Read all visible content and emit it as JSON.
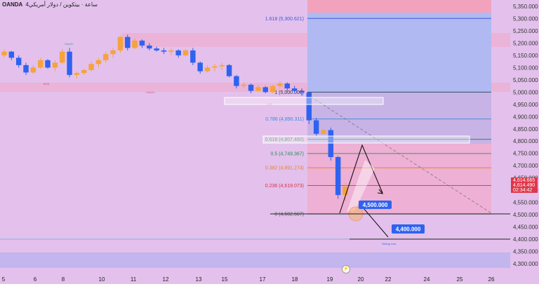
{
  "header": {
    "symbol": "OANDA",
    "description": "4ساعة · بيتكوین / دولار أمريكي"
  },
  "colors": {
    "background": "#e3c1ec",
    "bull": "#f5a33c",
    "bear": "#2f62f0",
    "fib_zone_blue": "#aeb8f4",
    "fib_zone_pink": "#f0aed0",
    "level_line": "#222222",
    "price_tag_blue": "#2f62f0"
  },
  "chart_data": {
    "type": "candlestick",
    "y_axis": {
      "ylim": [
        4290,
        5390
      ],
      "ticks": [
        "5,350.000",
        "5,300.000",
        "5,250.000",
        "5,200.000",
        "5,150.000",
        "5,100.000",
        "5,050.000",
        "5,000.000",
        "4,950.000",
        "4,900.000",
        "4,850.000",
        "4,800.000",
        "4,750.000",
        "4,700.000",
        "4,650.000",
        "4,600.000",
        "4,550.000",
        "4,500.000",
        "4,450.000",
        "4,400.000",
        "4,350.000",
        "4,300.000"
      ]
    },
    "x_axis": {
      "ticks": [
        "5",
        "6",
        "8",
        "10",
        "11",
        "12",
        "13",
        "15",
        "17",
        "18",
        "19",
        "20",
        "22",
        "24",
        "25",
        "26"
      ]
    },
    "price_labels": [
      {
        "text": "4,614.665",
        "value": 4614.665,
        "color": "#e0364a"
      },
      {
        "text": "4,614.490",
        "value": 4614.49,
        "color": "#e0364a"
      },
      {
        "text": "02:34:42",
        "value": 4592,
        "color": "#e0364a"
      }
    ],
    "fib_levels": [
      {
        "label": "1.618 (5,300.621)",
        "value": 5300.621,
        "color": "#3a5ad8"
      },
      {
        "label": "1 (5,000.000)",
        "value": 5000.0,
        "color": "#3a3a3a"
      },
      {
        "label": "0.786 (4,890.311)",
        "value": 4890.311,
        "color": "#3a8ad8"
      },
      {
        "label": "0.618 (4,807.460)",
        "value": 4807.46,
        "color": "#2b8a55"
      },
      {
        "label": "0.5 (4,749.367)",
        "value": 4749.367,
        "color": "#2b8a55"
      },
      {
        "label": "0.382 (4,691.274)",
        "value": 4691.274,
        "color": "#e8802a"
      },
      {
        "label": "0.236 (4,619.073)",
        "value": 4619.073,
        "color": "#d93048"
      },
      {
        "label": "0 (4,502.587)",
        "value": 4502.587,
        "color": "#555555"
      }
    ],
    "target_labels": [
      {
        "text": "4,500.000",
        "value": 4500
      },
      {
        "text": "4,400.000",
        "value": 4400
      }
    ],
    "annotations": [
      "ChoCh",
      "BOS",
      "ChoCh",
      "BOS",
      "Strong Low"
    ],
    "candles": [
      [
        5150,
        5175,
        5140,
        5165
      ],
      [
        5165,
        5168,
        5130,
        5140
      ],
      [
        5140,
        5150,
        5100,
        5110
      ],
      [
        5110,
        5120,
        5070,
        5080
      ],
      [
        5080,
        5110,
        5075,
        5100
      ],
      [
        5100,
        5140,
        5095,
        5130
      ],
      [
        5130,
        5135,
        5095,
        5100
      ],
      [
        5100,
        5130,
        5085,
        5120
      ],
      [
        5120,
        5175,
        5115,
        5165
      ],
      [
        5165,
        5180,
        5060,
        5070
      ],
      [
        5070,
        5085,
        5055,
        5078
      ],
      [
        5078,
        5095,
        5070,
        5090
      ],
      [
        5090,
        5125,
        5085,
        5115
      ],
      [
        5115,
        5140,
        5100,
        5130
      ],
      [
        5130,
        5165,
        5120,
        5155
      ],
      [
        5155,
        5180,
        5140,
        5170
      ],
      [
        5170,
        5230,
        5160,
        5225
      ],
      [
        5225,
        5235,
        5170,
        5180
      ],
      [
        5180,
        5220,
        5175,
        5210
      ],
      [
        5210,
        5215,
        5180,
        5190
      ],
      [
        5190,
        5200,
        5170,
        5178
      ],
      [
        5178,
        5185,
        5165,
        5170
      ],
      [
        5170,
        5180,
        5155,
        5165
      ],
      [
        5165,
        5178,
        5150,
        5170
      ],
      [
        5170,
        5175,
        5140,
        5150
      ],
      [
        5150,
        5175,
        5145,
        5170
      ],
      [
        5170,
        5180,
        5110,
        5120
      ],
      [
        5120,
        5125,
        5075,
        5085
      ],
      [
        5085,
        5110,
        5080,
        5100
      ],
      [
        5100,
        5115,
        5085,
        5105
      ],
      [
        5105,
        5120,
        5090,
        5110
      ],
      [
        5110,
        5115,
        5060,
        5065
      ],
      [
        5065,
        5070,
        5015,
        5025
      ],
      [
        5025,
        5040,
        5015,
        5030
      ],
      [
        5030,
        5035,
        4995,
        5005
      ],
      [
        5005,
        5030,
        5000,
        5020
      ],
      [
        5020,
        5025,
        4995,
        5000
      ],
      [
        5000,
        5030,
        4995,
        5025
      ],
      [
        5025,
        5045,
        5015,
        5035
      ],
      [
        5035,
        5040,
        5005,
        5015
      ],
      [
        5015,
        5025,
        4995,
        5005
      ],
      [
        5005,
        5015,
        4985,
        4998
      ],
      [
        4998,
        5000,
        4870,
        4885
      ],
      [
        4885,
        4895,
        4820,
        4830
      ],
      [
        4830,
        4850,
        4825,
        4845
      ],
      [
        4845,
        4855,
        4720,
        4735
      ],
      [
        4735,
        4740,
        4565,
        4580
      ],
      [
        4580,
        4630,
        4555,
        4615
      ]
    ]
  }
}
